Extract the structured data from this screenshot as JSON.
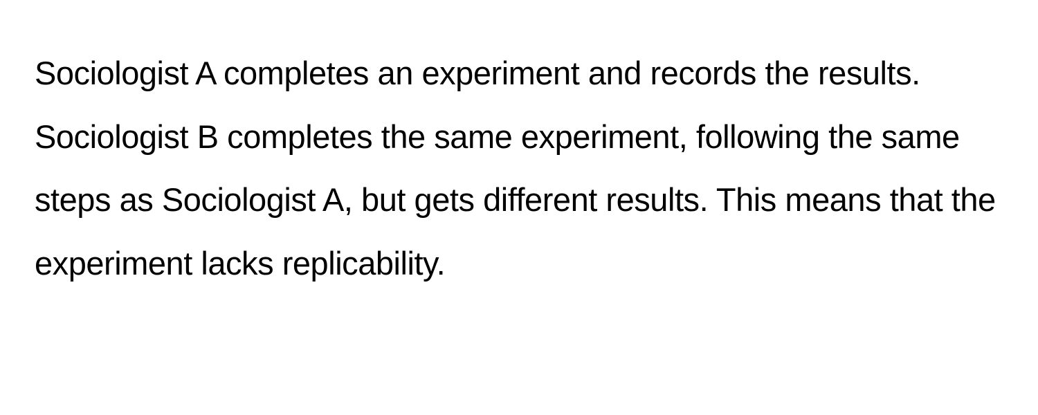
{
  "document": {
    "paragraph": "Sociologist A completes an experiment and records the results. Sociologist B completes the same experiment, following the same steps as Sociologist A, but gets different results. This means that the experiment lacks replicability.",
    "text_color": "#000000",
    "background_color": "#ffffff",
    "font_size": 47,
    "line_height": 1.95
  }
}
